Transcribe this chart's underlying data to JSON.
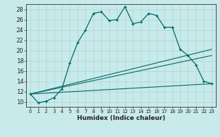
{
  "xlabel": "Humidex (Indice chaleur)",
  "bg_color": "#c8eaea",
  "line_color": "#006666",
  "grid_color": "#b0d8d8",
  "xlim": [
    -0.5,
    23.5
  ],
  "ylim": [
    9,
    29
  ],
  "xticks": [
    0,
    1,
    2,
    3,
    4,
    5,
    6,
    7,
    8,
    9,
    10,
    11,
    12,
    13,
    14,
    15,
    16,
    17,
    18,
    19,
    20,
    21,
    22,
    23
  ],
  "yticks": [
    10,
    12,
    14,
    16,
    18,
    20,
    22,
    24,
    26,
    28
  ],
  "main_curve_x": [
    0,
    1,
    2,
    3,
    4,
    5,
    6,
    7,
    8,
    9,
    10,
    11,
    12,
    13,
    14,
    15,
    16,
    17,
    18,
    19,
    20,
    21,
    22,
    23
  ],
  "main_curve_y": [
    11.5,
    9.8,
    10.1,
    10.8,
    12.5,
    17.5,
    21.5,
    24.0,
    27.2,
    27.5,
    25.8,
    26.0,
    28.5,
    25.2,
    25.5,
    27.2,
    26.8,
    24.5,
    24.5,
    20.2,
    19.0,
    17.2,
    14.0,
    13.5
  ],
  "fan_lines": [
    {
      "x": [
        0,
        23
      ],
      "y": [
        11.5,
        20.2
      ]
    },
    {
      "x": [
        0,
        23
      ],
      "y": [
        11.5,
        19.0
      ]
    },
    {
      "x": [
        0,
        23
      ],
      "y": [
        11.5,
        13.5
      ]
    }
  ]
}
